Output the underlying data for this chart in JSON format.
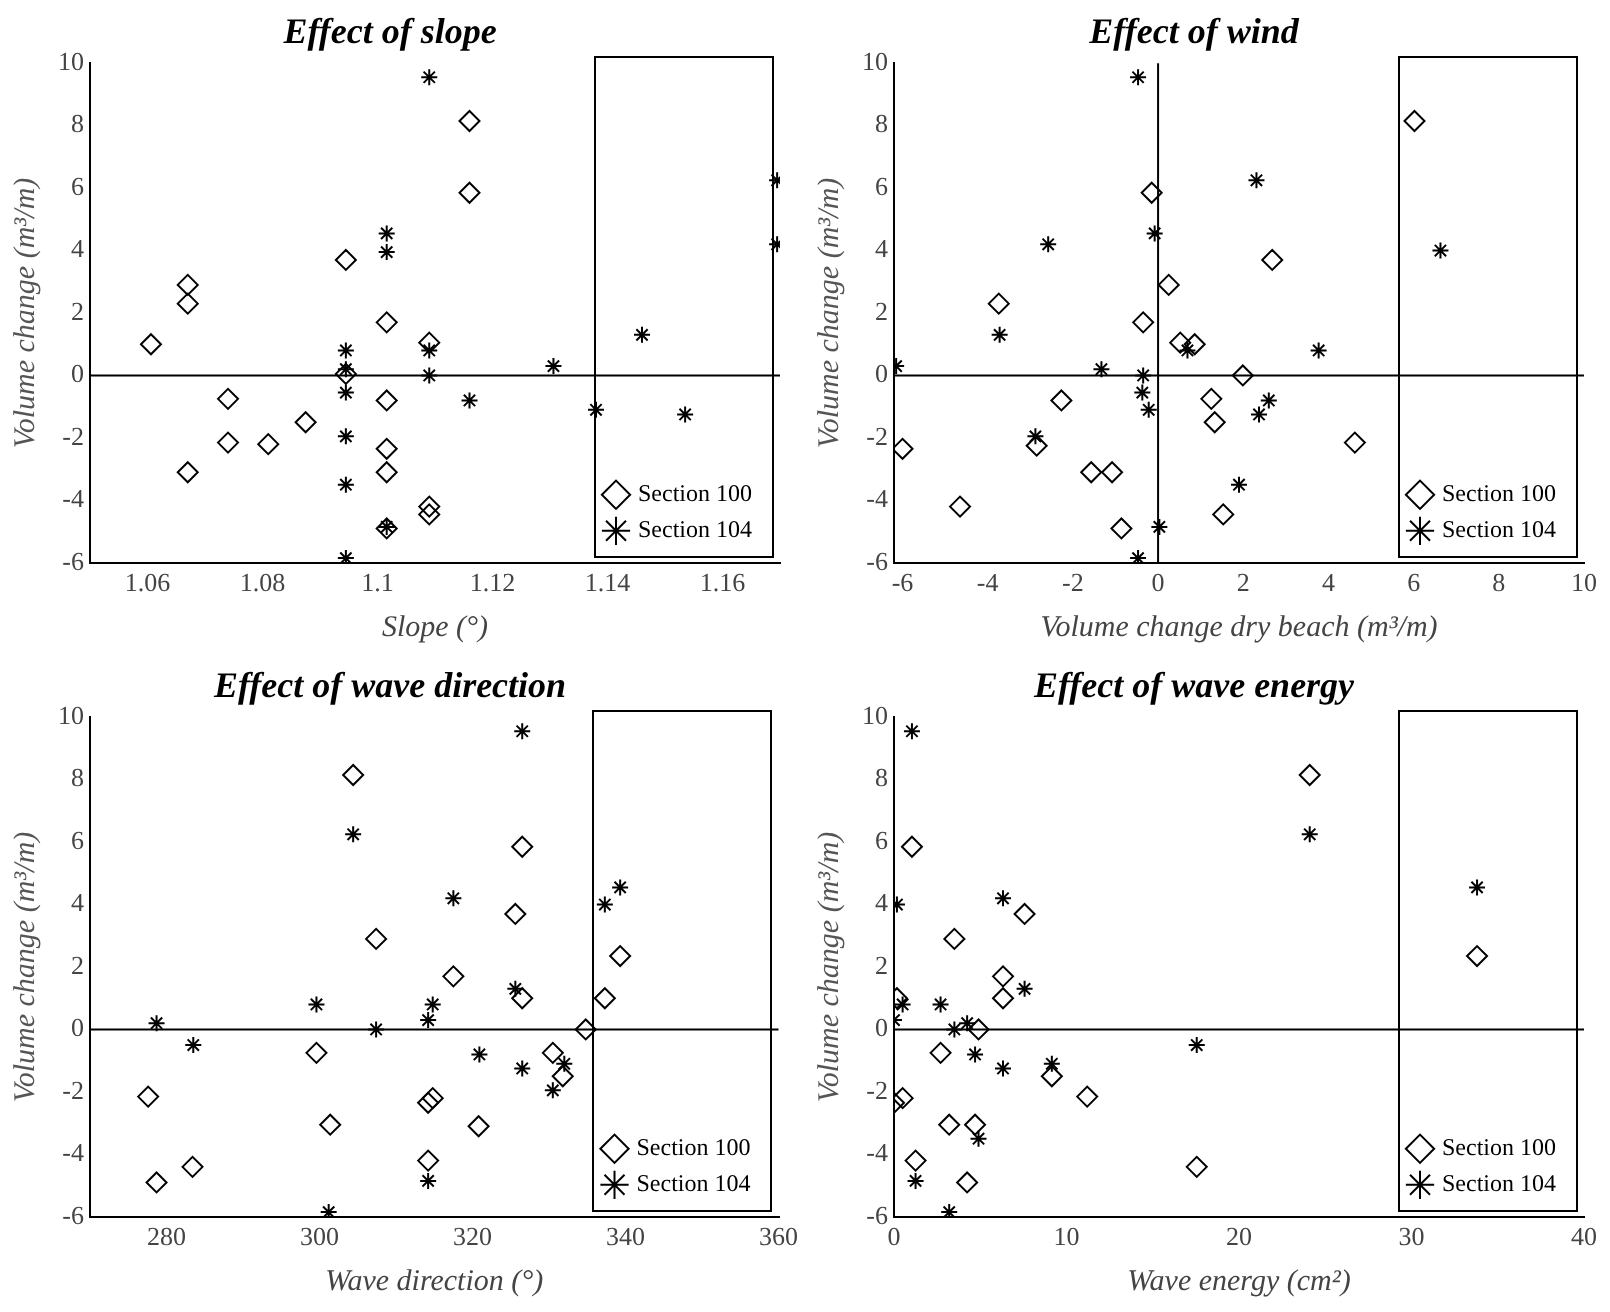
{
  "chart_data": [
    {
      "type": "scatter",
      "title": "Effect of slope",
      "xlabel": "Slope (°)",
      "ylabel": "Volume change (m³/m)",
      "xlim": [
        1.05,
        1.17
      ],
      "xticks": [
        1.06,
        1.08,
        1.1,
        1.12,
        1.14,
        1.16
      ],
      "ylim": [
        -6,
        10
      ],
      "yticks": [
        -6,
        -4,
        -2,
        0,
        2,
        4,
        6,
        8,
        10
      ],
      "grid": false,
      "legend": "bottom right",
      "ref_lines": [
        {
          "axis": "y",
          "value": 0,
          "color": "#000000"
        }
      ],
      "series": [
        {
          "name": "Section 100",
          "color": "#000000",
          "marker": "diamond",
          "x": [
            1.0606,
            1.067,
            1.067,
            1.067,
            1.074,
            1.074,
            1.081,
            1.0875,
            1.0945,
            1.0945,
            1.1016,
            1.1016,
            1.1016,
            1.1016,
            1.1016,
            1.109,
            1.109,
            1.109,
            1.116,
            1.116
          ],
          "values": [
            1.0,
            2.9,
            2.3,
            -3.1,
            -0.75,
            -2.15,
            -2.2,
            -1.5,
            3.7,
            0.05,
            1.7,
            -0.8,
            -2.35,
            -3.1,
            -4.9,
            1.05,
            -4.2,
            -4.45,
            8.15,
            5.85
          ]
        },
        {
          "name": "Section 104",
          "color": "#000000",
          "marker": "cross",
          "x": [
            1.109,
            1.1016,
            1.1016,
            1.0945,
            1.0945,
            1.0945,
            1.0945,
            1.0945,
            1.0945,
            1.1016,
            1.109,
            1.109,
            1.116,
            1.1306,
            1.138,
            1.146,
            1.1535,
            1.1695,
            1.1695
          ],
          "values": [
            9.55,
            4.55,
            3.95,
            0.8,
            0.2,
            -0.55,
            -1.95,
            -3.5,
            -5.85,
            -4.85,
            0.8,
            0.0,
            -0.8,
            0.3,
            -1.1,
            1.3,
            -1.25,
            6.25,
            4.2
          ]
        }
      ]
    },
    {
      "type": "scatter",
      "title": "Effect of wind",
      "xlabel": "Volume change dry beach (m³/m)",
      "ylabel": "Volume change (m³/m)",
      "xlim": [
        -6.2,
        10
      ],
      "xticks": [
        -6,
        -4,
        -2,
        0,
        2,
        4,
        6,
        8,
        10
      ],
      "ylim": [
        -6,
        10
      ],
      "yticks": [
        -6,
        -4,
        -2,
        0,
        2,
        4,
        6,
        8,
        10
      ],
      "grid": false,
      "legend": "bottom right",
      "ref_lines": [
        {
          "axis": "y",
          "value": 0,
          "color": "#000000"
        },
        {
          "axis": "x",
          "value": 0,
          "color": "#000000"
        }
      ],
      "series": [
        {
          "name": "Section 100",
          "color": "#000000",
          "marker": "diamond",
          "x": [
            -6.0,
            -4.65,
            -3.74,
            -2.85,
            -2.27,
            -1.57,
            -1.08,
            -0.86,
            -0.35,
            -0.15,
            0.25,
            0.52,
            0.86,
            1.25,
            1.33,
            1.53,
            1.99,
            2.68,
            4.62,
            6.02
          ],
          "values": [
            -2.35,
            -4.2,
            2.3,
            -2.25,
            -0.8,
            -3.1,
            -3.1,
            -4.9,
            1.7,
            5.85,
            2.9,
            1.05,
            1.0,
            -0.75,
            -1.5,
            -4.45,
            0.0,
            3.7,
            -2.15,
            8.15
          ]
        },
        {
          "name": "Section 104",
          "color": "#000000",
          "marker": "cross",
          "x": [
            -6.15,
            -3.72,
            -2.58,
            -2.88,
            -1.33,
            -0.47,
            -0.35,
            -0.37,
            -0.22,
            -0.08,
            -0.47,
            0.03,
            0.69,
            2.31,
            2.37,
            2.6,
            1.9,
            3.77,
            6.63
          ],
          "values": [
            0.3,
            1.3,
            4.2,
            -1.95,
            0.2,
            9.55,
            0.0,
            -0.55,
            -1.1,
            4.55,
            -5.85,
            -4.85,
            0.8,
            6.25,
            -1.25,
            -0.8,
            -3.5,
            0.8,
            4.0
          ]
        }
      ]
    },
    {
      "type": "scatter",
      "title": "Effect of wave direction",
      "xlabel": "Wave direction (°)",
      "ylabel": "Volume change (m³/m)",
      "xlim": [
        270,
        360
      ],
      "xticks": [
        280,
        300,
        320,
        340,
        360
      ],
      "ylim": [
        -6,
        10
      ],
      "yticks": [
        -6,
        -4,
        -2,
        0,
        2,
        4,
        6,
        8,
        10
      ],
      "grid": false,
      "legend": "bottom right",
      "ref_lines": [
        {
          "axis": "y",
          "value": 0,
          "color": "#000000"
        }
      ],
      "series": [
        {
          "name": "Section 100",
          "color": "#000000",
          "marker": "diamond",
          "x": [
            277.6,
            278.7,
            283.4,
            299.6,
            301.4,
            304.4,
            307.4,
            314.2,
            314.8,
            314.2,
            317.5,
            320.8,
            325.6,
            326.5,
            326.5,
            330.5,
            331.8,
            334.8,
            337.3,
            339.3
          ],
          "values": [
            -2.15,
            -4.9,
            -4.4,
            -0.75,
            -3.05,
            8.15,
            2.9,
            -2.35,
            -2.2,
            -4.2,
            1.7,
            -3.1,
            3.7,
            5.85,
            1.0,
            -0.75,
            -1.5,
            0.0,
            1.0,
            2.35
          ]
        },
        {
          "name": "Section 104",
          "color": "#000000",
          "marker": "cross",
          "x": [
            278.7,
            283.5,
            299.6,
            301.2,
            304.4,
            307.4,
            314.2,
            314.8,
            314.2,
            317.5,
            320.9,
            326.5,
            325.6,
            326.5,
            330.5,
            332.0,
            337.3,
            339.3
          ],
          "values": [
            0.2,
            -0.5,
            0.8,
            -5.85,
            6.25,
            0.0,
            0.3,
            0.8,
            -4.85,
            4.2,
            -0.8,
            9.55,
            1.3,
            -1.25,
            -1.95,
            -1.1,
            4.0,
            4.55
          ]
        }
      ]
    },
    {
      "type": "scatter",
      "title": "Effect of wave energy",
      "xlabel": "Wave energy (cm²)",
      "ylabel": "Volume change (m³/m)",
      "xlim": [
        0,
        40
      ],
      "xticks": [
        0,
        10,
        20,
        30,
        40
      ],
      "ylim": [
        -6,
        10
      ],
      "yticks": [
        -6,
        -4,
        -2,
        0,
        2,
        4,
        6,
        8,
        10
      ],
      "grid": false,
      "legend": "bottom right",
      "ref_lines": [
        {
          "axis": "y",
          "value": 0,
          "color": "#000000"
        }
      ],
      "series": [
        {
          "name": "Section 100",
          "color": "#000000",
          "marker": "diamond",
          "x": [
            0.0,
            0.17,
            0.5,
            1.04,
            1.25,
            2.7,
            3.2,
            3.5,
            4.24,
            4.7,
            4.9,
            6.32,
            6.32,
            7.57,
            9.15,
            11.2,
            17.55,
            24.1,
            33.8
          ],
          "values": [
            -2.35,
            1.0,
            -2.2,
            5.85,
            -4.2,
            -0.75,
            -3.05,
            2.9,
            -4.9,
            -3.05,
            0.0,
            1.7,
            1.0,
            3.7,
            -1.5,
            -2.15,
            -4.4,
            8.15,
            2.35
          ]
        },
        {
          "name": "Section 104",
          "color": "#000000",
          "marker": "cross",
          "x": [
            0.0,
            0.17,
            1.04,
            0.5,
            1.25,
            2.7,
            3.2,
            3.5,
            4.24,
            4.7,
            4.9,
            6.32,
            6.32,
            7.57,
            9.15,
            17.55,
            24.1,
            33.8
          ],
          "values": [
            0.3,
            4.0,
            9.55,
            0.8,
            -4.85,
            0.8,
            -5.85,
            0.0,
            0.2,
            -0.8,
            -3.5,
            4.2,
            -1.25,
            1.3,
            -1.1,
            -0.5,
            6.25,
            4.55
          ]
        }
      ]
    }
  ]
}
